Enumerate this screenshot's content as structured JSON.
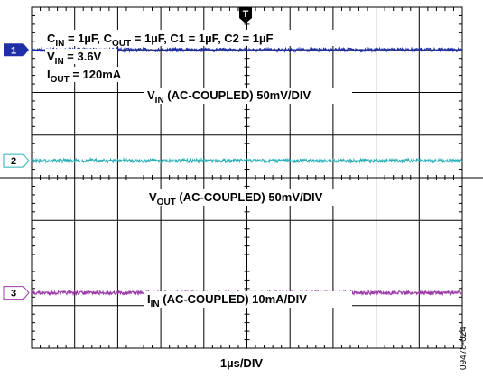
{
  "chart_data": {
    "type": "line",
    "x_divisions": 10,
    "y_divisions": 8,
    "grid": true,
    "xlabel": "1µs/DIV",
    "conditions": {
      "line1": {
        "main": "C",
        "sub": "IN",
        "rest": " = 1µF, C",
        "sub2": "OUT",
        "rest2": " = 1µF, C1 = 1µF, C2 = 1µF"
      },
      "line2": {
        "main": "V",
        "sub": "IN",
        "rest": " = 3.6V"
      },
      "line3": {
        "main": "I",
        "sub": "OUT",
        "rest": " = 120mA"
      }
    },
    "trigger_marker": "T",
    "series": [
      {
        "name": "1",
        "label_main": "V",
        "label_sub": "IN",
        "label_rest": " (AC-COUPLED) 50mV/DIV",
        "color": "#1f2fa8",
        "level_div": 1.0,
        "noise_div": 0.04,
        "marker_style": "filled"
      },
      {
        "name": "2",
        "label_main": "V",
        "label_sub": "OUT",
        "label_rest": " (AC-COUPLED) 50mV/DIV",
        "color": "#2ab1b8",
        "level_div": 3.6,
        "noise_div": 0.04,
        "marker_style": "outline"
      },
      {
        "name": "3",
        "label_main": "I",
        "label_sub": "IN",
        "label_rest": " (AC-COUPLED) 10mA/DIV",
        "color": "#9b3aa8",
        "level_div": 6.7,
        "noise_div": 0.04,
        "marker_style": "outline"
      }
    ],
    "figure_id": "09478-024"
  }
}
